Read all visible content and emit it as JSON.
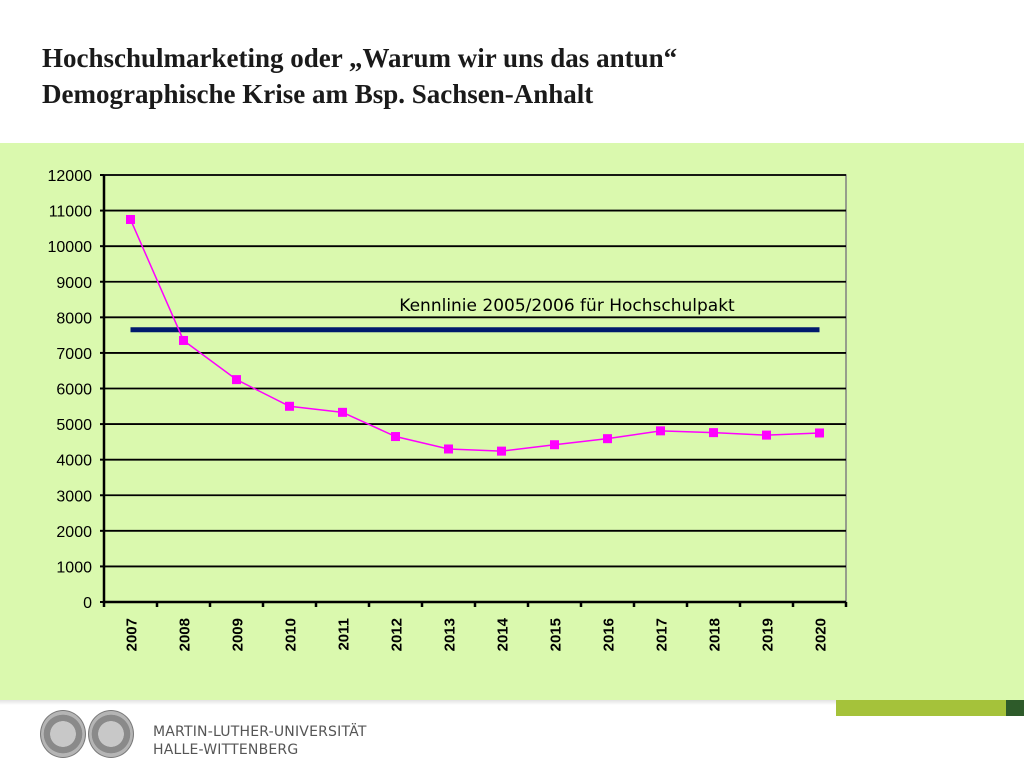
{
  "slide": {
    "title_line1": "Hochschulmarketing oder „Warum wir uns das antun“",
    "title_line2": "Demographische Krise am Bsp. Sachsen-Anhalt"
  },
  "footer": {
    "university_line1": "MARTIN-LUTHER-UNIVERSITÄT",
    "university_line2": "HALLE-WITTENBERG"
  },
  "colors": {
    "panel_background": "#daf9ae",
    "series_line": "#ff00ff",
    "reference_line": "#001a6e",
    "grid": "#000000"
  },
  "chart_data": {
    "type": "line",
    "categories": [
      "2007",
      "2008",
      "2009",
      "2010",
      "2011",
      "2012",
      "2013",
      "2014",
      "2015",
      "2016",
      "2017",
      "2018",
      "2019",
      "2020"
    ],
    "series": [
      {
        "values": [
          10750,
          7350,
          6250,
          5500,
          5330,
          4650,
          4300,
          4240,
          4420,
          4590,
          4810,
          4760,
          4690,
          4750
        ]
      }
    ],
    "yticks": [
      0,
      1000,
      2000,
      3000,
      4000,
      5000,
      6000,
      7000,
      8000,
      9000,
      10000,
      11000,
      12000
    ],
    "ylim": [
      0,
      12000
    ],
    "grid": true,
    "reference_line": {
      "value": 7650,
      "label": "Kennlinie 2005/2006 für Hochschulpakt"
    },
    "title": "",
    "xlabel": "",
    "ylabel": ""
  }
}
